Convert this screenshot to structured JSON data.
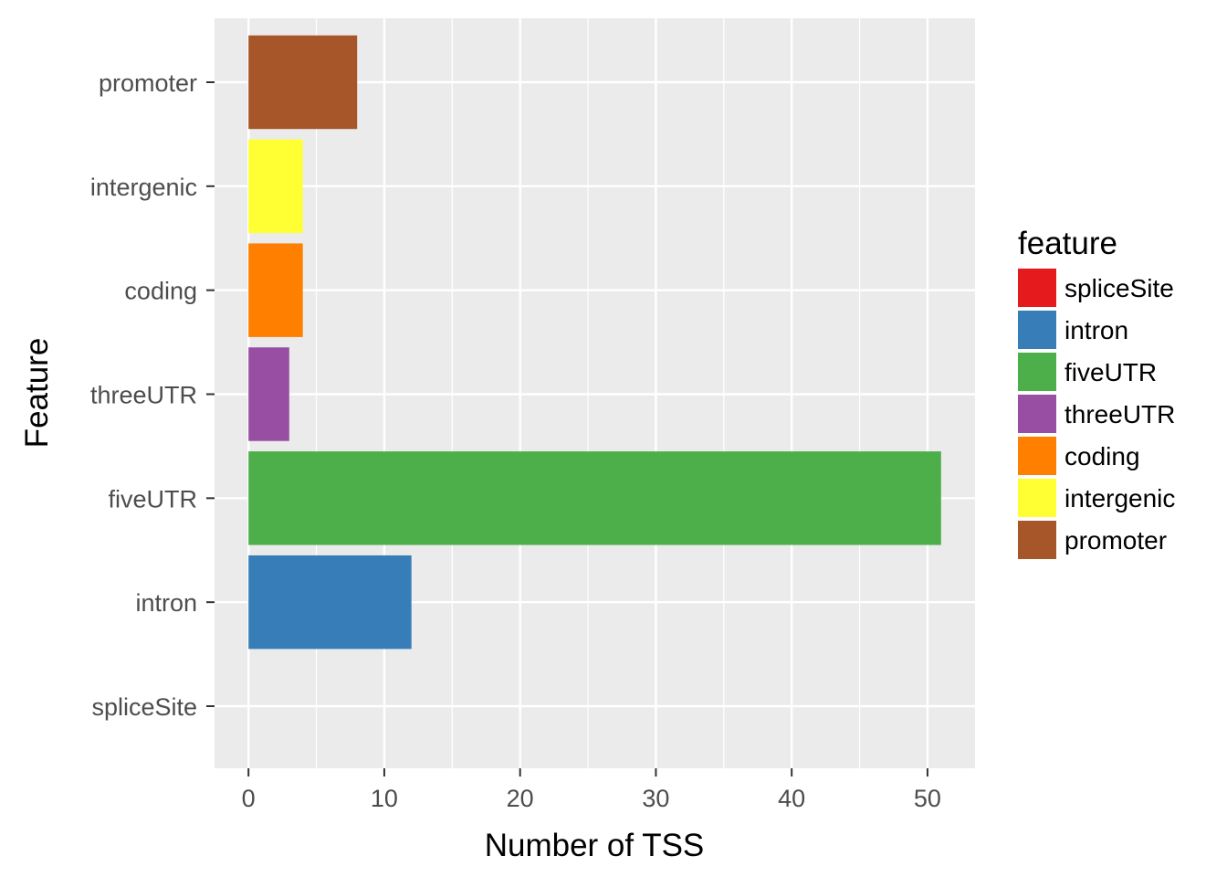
{
  "chart_data": {
    "type": "bar",
    "orientation": "horizontal",
    "categories": [
      "spliceSite",
      "intron",
      "fiveUTR",
      "threeUTR",
      "coding",
      "intergenic",
      "promoter"
    ],
    "values": [
      0,
      12,
      51,
      3,
      4,
      4,
      8
    ],
    "colors": [
      "#E41A1C",
      "#377EB8",
      "#4DAF4A",
      "#984EA3",
      "#FF7F00",
      "#FFFF33",
      "#A65628"
    ],
    "xlabel": "Number of TSS",
    "ylabel": "Feature",
    "xlim": [
      -2.5,
      53.5
    ],
    "x_ticks": [
      "0",
      "10",
      "20",
      "30",
      "40",
      "50"
    ],
    "grid": true,
    "panel_background": "#EBEBEB",
    "legend": {
      "title": "feature",
      "position": "right",
      "entries": [
        "spliceSite",
        "intron",
        "fiveUTR",
        "threeUTR",
        "coding",
        "intergenic",
        "promoter"
      ]
    }
  }
}
